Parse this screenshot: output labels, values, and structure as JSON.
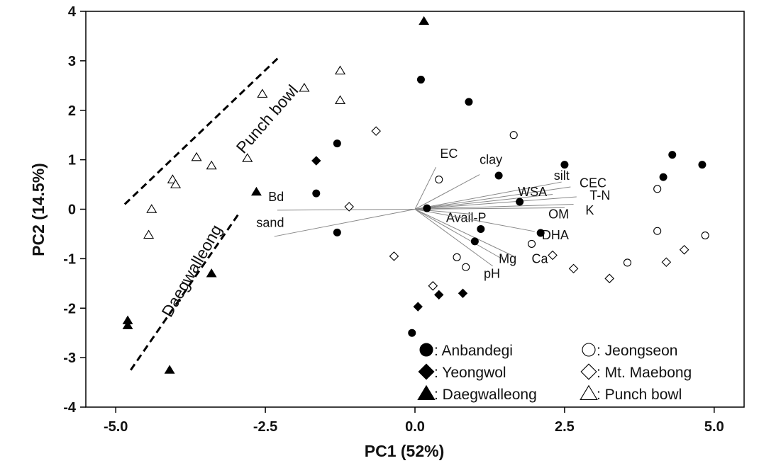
{
  "chart_data": {
    "type": "scatter",
    "xlabel": "PC1 (52%)",
    "ylabel": "PC2 (14.5%)",
    "xlim": [
      -5.5,
      5.5
    ],
    "ylim": [
      -4.0,
      4.0
    ],
    "x_ticks": [
      -5.0,
      -2.5,
      0.0,
      2.5,
      5.0
    ],
    "x_tick_labels": [
      "-5.0",
      "-2.5",
      "0.0",
      "2.5",
      "5.0"
    ],
    "y_ticks": [
      -4,
      -3,
      -2,
      -1,
      0,
      1,
      2,
      3,
      4
    ],
    "y_tick_labels": [
      "-4",
      "-3",
      "-2",
      "-1",
      "0",
      "1",
      "2",
      "3",
      "4"
    ],
    "grid": false,
    "legend_position": "bottom-right",
    "series": [
      {
        "name": "Anbandegi",
        "legend_label": ": Anbandegi",
        "marker": "circle",
        "fill": "#000000",
        "points": [
          [
            0.1,
            2.62
          ],
          [
            0.9,
            2.17
          ],
          [
            -1.3,
            1.33
          ],
          [
            -1.65,
            0.32
          ],
          [
            -1.3,
            -0.47
          ],
          [
            1.4,
            0.68
          ],
          [
            2.5,
            0.9
          ],
          [
            1.75,
            0.15
          ],
          [
            0.2,
            0.02
          ],
          [
            1.1,
            -0.4
          ],
          [
            2.1,
            -0.48
          ],
          [
            1.0,
            -0.65
          ],
          [
            -0.05,
            -2.5
          ],
          [
            4.3,
            1.1
          ],
          [
            4.15,
            0.65
          ],
          [
            4.8,
            0.9
          ]
        ]
      },
      {
        "name": "Yeongwol",
        "legend_label": ": Yeongwol",
        "marker": "diamond",
        "fill": "#000000",
        "points": [
          [
            -1.65,
            0.98
          ],
          [
            0.05,
            -1.97
          ],
          [
            0.4,
            -1.73
          ],
          [
            0.8,
            -1.7
          ]
        ]
      },
      {
        "name": "Daegwalleong",
        "legend_label": ": Daegwalleong",
        "marker": "triangle",
        "fill": "#000000",
        "points": [
          [
            0.15,
            3.8
          ],
          [
            -2.65,
            0.35
          ],
          [
            -3.4,
            -1.3
          ],
          [
            -4.8,
            -2.25
          ],
          [
            -4.8,
            -2.35
          ],
          [
            -4.1,
            -3.25
          ]
        ]
      },
      {
        "name": "Jeongseon",
        "legend_label": ": Jeongseon",
        "marker": "circle",
        "fill": "#ffffff",
        "points": [
          [
            1.65,
            1.5
          ],
          [
            0.4,
            0.6
          ],
          [
            0.7,
            -0.97
          ],
          [
            0.85,
            -1.17
          ],
          [
            1.95,
            -0.7
          ],
          [
            3.55,
            -1.08
          ],
          [
            4.05,
            0.41
          ],
          [
            4.05,
            -0.44
          ],
          [
            4.85,
            -0.53
          ]
        ]
      },
      {
        "name": "Mt. Maebong",
        "legend_label": ": Mt. Maebong",
        "marker": "diamond",
        "fill": "#ffffff",
        "points": [
          [
            -0.65,
            1.58
          ],
          [
            -1.1,
            0.05
          ],
          [
            -0.35,
            -0.95
          ],
          [
            0.3,
            -1.55
          ],
          [
            2.3,
            -0.93
          ],
          [
            2.65,
            -1.2
          ],
          [
            3.25,
            -1.4
          ],
          [
            4.2,
            -1.07
          ],
          [
            4.5,
            -0.82
          ]
        ]
      },
      {
        "name": "Punch bowl",
        "legend_label": ": Punch bowl",
        "marker": "triangle",
        "fill": "#ffffff",
        "points": [
          [
            -1.25,
            2.8
          ],
          [
            -1.25,
            2.2
          ],
          [
            -1.85,
            2.45
          ],
          [
            -2.55,
            2.33
          ],
          [
            -2.8,
            1.03
          ],
          [
            -3.4,
            0.88
          ],
          [
            -3.65,
            1.05
          ],
          [
            -4.05,
            0.6
          ],
          [
            -4.0,
            0.5
          ],
          [
            -4.4,
            0.0
          ],
          [
            -4.45,
            -0.52
          ]
        ]
      }
    ],
    "loadings": [
      {
        "label": "EC",
        "end": [
          0.35,
          0.85
        ],
        "label_at": [
          0.42,
          1.12
        ]
      },
      {
        "label": "clay",
        "end": [
          1.08,
          0.7
        ],
        "label_at": [
          1.08,
          1.0
        ]
      },
      {
        "label": "silt",
        "end": [
          2.45,
          0.55
        ],
        "label_at": [
          2.32,
          0.68
        ]
      },
      {
        "label": "CEC",
        "end": [
          2.6,
          0.45
        ],
        "label_at": [
          2.75,
          0.53
        ]
      },
      {
        "label": "WSA",
        "end": [
          2.3,
          0.3
        ],
        "label_at": [
          1.72,
          0.35
        ]
      },
      {
        "label": "T-N",
        "end": [
          2.7,
          0.25
        ],
        "label_at": [
          2.92,
          0.28
        ]
      },
      {
        "label": "OM",
        "end": [
          2.5,
          0.03
        ],
        "label_at": [
          2.23,
          -0.1
        ]
      },
      {
        "label": "K",
        "end": [
          2.65,
          0.1
        ],
        "label_at": [
          2.85,
          -0.02
        ]
      },
      {
        "label": "Avail-P",
        "end": [
          0.95,
          -0.1
        ],
        "label_at": [
          0.52,
          -0.17
        ]
      },
      {
        "label": "DHA",
        "end": [
          2.0,
          -0.45
        ],
        "label_at": [
          2.12,
          -0.52
        ]
      },
      {
        "label": "Ca",
        "end": [
          1.65,
          -0.95
        ],
        "label_at": [
          1.95,
          -1.0
        ]
      },
      {
        "label": "Mg",
        "end": [
          1.45,
          -1.0
        ],
        "label_at": [
          1.4,
          -1.0
        ]
      },
      {
        "label": "pH",
        "end": [
          1.3,
          -1.15
        ],
        "label_at": [
          1.15,
          -1.3
        ]
      },
      {
        "label": "Bd",
        "end": [
          -2.3,
          -0.02
        ],
        "label_at": [
          -2.45,
          0.25
        ]
      },
      {
        "label": "sand",
        "end": [
          -2.35,
          -0.55
        ],
        "label_at": [
          -2.65,
          -0.27
        ]
      }
    ],
    "annotations": [
      {
        "text": "Punch bowl",
        "line_from": [
          -4.85,
          0.1
        ],
        "line_to": [
          -2.25,
          3.1
        ],
        "label_at": [
          -2.4,
          1.75
        ],
        "angle": -49
      },
      {
        "text": "Daegwalleong",
        "line_from": [
          -4.75,
          -3.25
        ],
        "line_to": [
          -2.95,
          -0.1
        ],
        "label_at": [
          -3.65,
          -1.3
        ],
        "angle": -60
      }
    ]
  }
}
